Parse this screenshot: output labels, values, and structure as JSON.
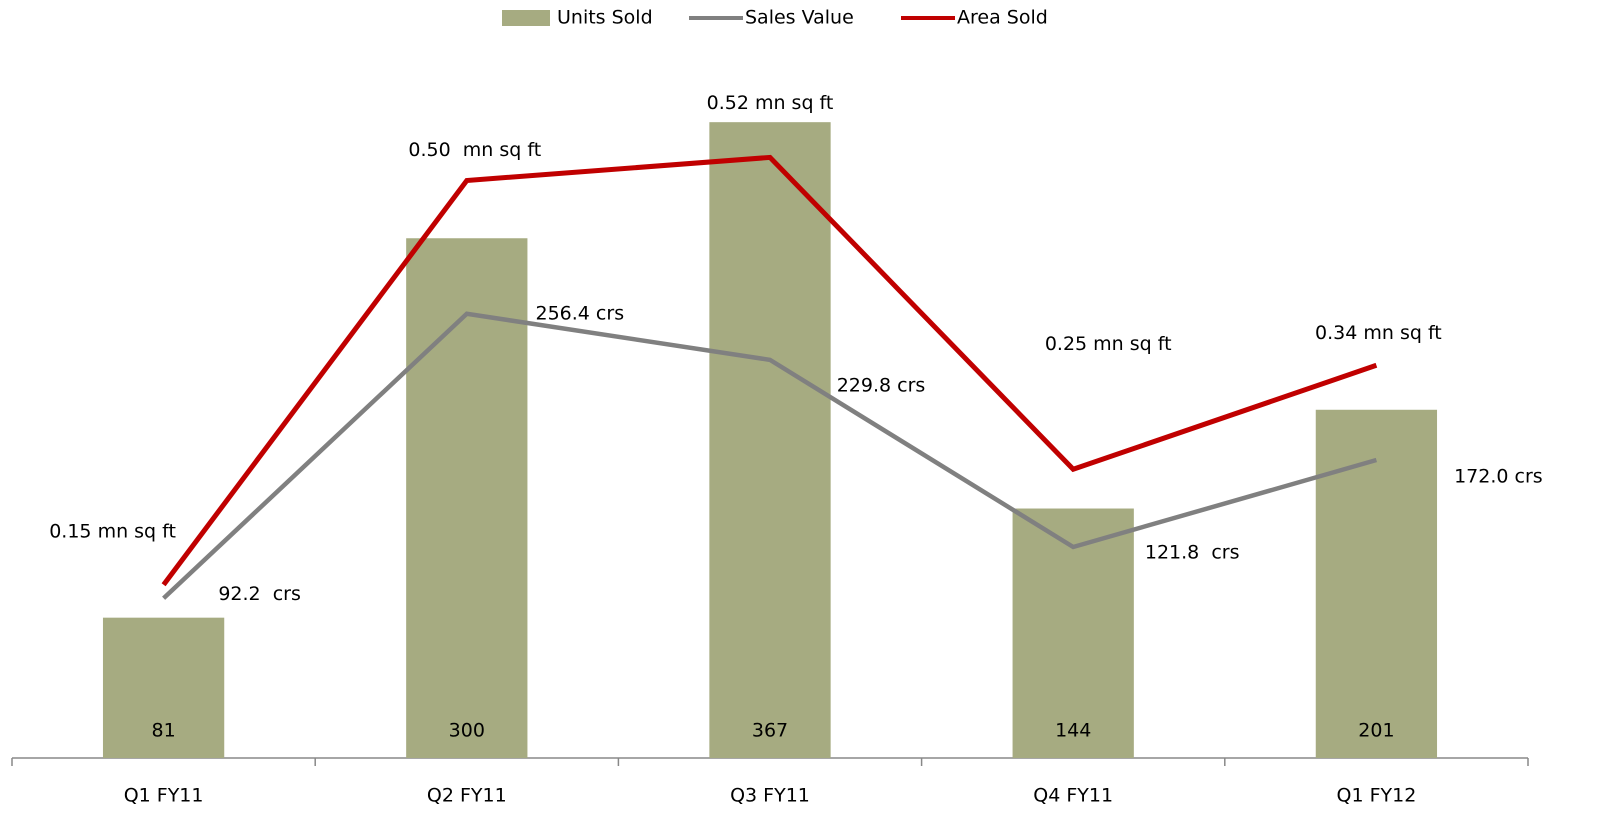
{
  "chart_data": {
    "type": "bar-line",
    "categories": [
      "Q1 FY11",
      "Q2 FY11",
      "Q3 FY11",
      "Q4 FY11",
      "Q1 FY12"
    ],
    "ylim": [
      0,
      400
    ],
    "y2lim": [
      0,
      0.6
    ],
    "legend": "top",
    "series": [
      {
        "name": "Units Sold",
        "type": "bar",
        "color": "#a6ab81",
        "values": [
          81,
          300,
          367,
          144,
          201
        ]
      },
      {
        "name": "Sales Value",
        "type": "line",
        "color": "#808080",
        "values": [
          92.2,
          256.4,
          229.8,
          121.8,
          172.0
        ],
        "value_labels": [
          "92.2  crs",
          "256.4 crs",
          "229.8 crs",
          "121.8  crs",
          "172.0 crs"
        ]
      },
      {
        "name": "Area Sold",
        "type": "line",
        "axis": "y2",
        "color": "#c00000",
        "values": [
          0.15,
          0.5,
          0.52,
          0.25,
          0.34
        ],
        "value_labels": [
          "0.15 mn sq ft",
          "0.50  mn sq ft",
          "0.52 mn sq ft",
          "0.25 mn sq ft",
          "0.34 mn sq ft"
        ]
      }
    ]
  }
}
